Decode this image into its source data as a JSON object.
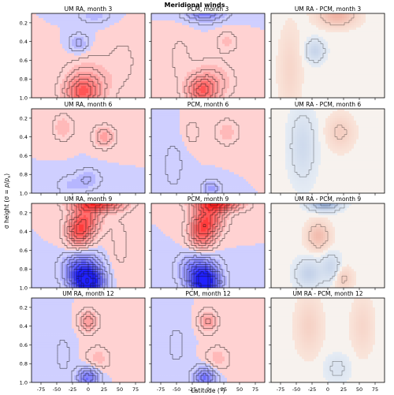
{
  "figure": {
    "title": "Meridional winds",
    "ylabel": "σ height (σ = p/p_s)",
    "xlabel": "Latitude (°)"
  },
  "chart_data": {
    "type": "heatmap",
    "title": "Meridional winds",
    "xlabel": "Latitude (°)",
    "ylabel": "σ height (σ = p/p_s)",
    "xlim": [
      -90,
      90
    ],
    "ylim": [
      1.0,
      0.1
    ],
    "x_ticks": [
      "-75",
      "-50",
      "-25",
      "0",
      "25",
      "50",
      "75"
    ],
    "y_ticks": [
      "0.2",
      "0.4",
      "0.6",
      "0.8",
      "1.0"
    ],
    "x_tick_values": [
      -75,
      -50,
      -25,
      0,
      25,
      50,
      75
    ],
    "y_tick_values": [
      0.2,
      0.4,
      0.6,
      0.8,
      1.0
    ],
    "colors": {
      "positive": "#e03030",
      "negative": "#3a3adf",
      "contour": "#111111"
    },
    "panels": [
      {
        "title": "UM RA, month 3",
        "row": 0,
        "col": 0,
        "style": "full",
        "blobs": [
          {
            "lat": -10,
            "sigma": 0.95,
            "value": 2.2,
            "wlat": 18,
            "wsig": 0.12
          },
          {
            "lat": 0,
            "sigma": 0.85,
            "value": 1.2,
            "wlat": 26,
            "wsig": 0.18
          },
          {
            "lat": -15,
            "sigma": 0.42,
            "value": -1.1,
            "wlat": 10,
            "wsig": 0.07
          },
          {
            "lat": 10,
            "sigma": 0.12,
            "value": -0.8,
            "wlat": 18,
            "wsig": 0.06
          },
          {
            "lat": 55,
            "sigma": 0.6,
            "value": 0.4,
            "wlat": 18,
            "wsig": 0.2
          }
        ]
      },
      {
        "title": "PCM, month 3",
        "row": 0,
        "col": 1,
        "style": "full",
        "blobs": [
          {
            "lat": -5,
            "sigma": 0.1,
            "value": -2.0,
            "wlat": 22,
            "wsig": 0.06
          },
          {
            "lat": -10,
            "sigma": 0.93,
            "value": 2.4,
            "wlat": 16,
            "wsig": 0.1
          },
          {
            "lat": 5,
            "sigma": 0.82,
            "value": 1.1,
            "wlat": 24,
            "wsig": 0.15
          },
          {
            "lat": 30,
            "sigma": 0.4,
            "value": 0.7,
            "wlat": 12,
            "wsig": 0.08
          },
          {
            "lat": -45,
            "sigma": 0.55,
            "value": 0.4,
            "wlat": 14,
            "wsig": 0.2
          }
        ]
      },
      {
        "title": "UM RA - PCM, month 3",
        "row": 0,
        "col": 2,
        "style": "diff",
        "blobs": [
          {
            "lat": 15,
            "sigma": 0.12,
            "value": 1.2,
            "wlat": 20,
            "wsig": 0.08
          },
          {
            "lat": -20,
            "sigma": 0.5,
            "value": -0.9,
            "wlat": 10,
            "wsig": 0.08
          },
          {
            "lat": -60,
            "sigma": 0.7,
            "value": 0.4,
            "wlat": 12,
            "wsig": 0.3
          }
        ]
      },
      {
        "title": "UM RA, month 6",
        "row": 1,
        "col": 0,
        "style": "full",
        "blobs": [
          {
            "lat": -40,
            "sigma": 0.3,
            "value": 0.9,
            "wlat": 12,
            "wsig": 0.1
          },
          {
            "lat": 25,
            "sigma": 0.4,
            "value": 1.4,
            "wlat": 12,
            "wsig": 0.08
          },
          {
            "lat": 0,
            "sigma": 0.85,
            "value": -0.9,
            "wlat": 14,
            "wsig": 0.08
          },
          {
            "lat": -30,
            "sigma": 0.92,
            "value": -0.6,
            "wlat": 16,
            "wsig": 0.08
          }
        ]
      },
      {
        "title": "PCM, month 6",
        "row": 1,
        "col": 1,
        "style": "full",
        "blobs": [
          {
            "lat": 30,
            "sigma": 0.35,
            "value": 0.8,
            "wlat": 14,
            "wsig": 0.1
          },
          {
            "lat": -25,
            "sigma": 0.35,
            "value": 0.5,
            "wlat": 10,
            "wsig": 0.1
          },
          {
            "lat": 5,
            "sigma": 0.95,
            "value": -1.4,
            "wlat": 10,
            "wsig": 0.06
          },
          {
            "lat": -55,
            "sigma": 0.7,
            "value": -0.5,
            "wlat": 12,
            "wsig": 0.2
          }
        ]
      },
      {
        "title": "UM RA - PCM, month 6",
        "row": 1,
        "col": 2,
        "style": "diff",
        "blobs": [
          {
            "lat": -40,
            "sigma": 0.5,
            "value": -0.7,
            "wlat": 14,
            "wsig": 0.25
          },
          {
            "lat": 20,
            "sigma": 0.35,
            "value": 0.6,
            "wlat": 14,
            "wsig": 0.12
          }
        ]
      },
      {
        "title": "UM RA, month 9",
        "row": 2,
        "col": 0,
        "style": "full",
        "blobs": [
          {
            "lat": -15,
            "sigma": 0.4,
            "value": 3.0,
            "wlat": 14,
            "wsig": 0.12
          },
          {
            "lat": 15,
            "sigma": 0.1,
            "value": 3.5,
            "wlat": 28,
            "wsig": 0.06
          },
          {
            "lat": 0,
            "sigma": 0.25,
            "value": 2.0,
            "wlat": 16,
            "wsig": 0.12
          },
          {
            "lat": 0,
            "sigma": 0.95,
            "value": -5.0,
            "wlat": 16,
            "wsig": 0.1
          },
          {
            "lat": -10,
            "sigma": 0.8,
            "value": -3.0,
            "wlat": 20,
            "wsig": 0.12
          },
          {
            "lat": 50,
            "sigma": 0.55,
            "value": 0.4,
            "wlat": 14,
            "wsig": 0.3
          }
        ]
      },
      {
        "title": "PCM, month 9",
        "row": 2,
        "col": 1,
        "style": "full",
        "blobs": [
          {
            "lat": -10,
            "sigma": 0.4,
            "value": 3.0,
            "wlat": 14,
            "wsig": 0.14
          },
          {
            "lat": 15,
            "sigma": 0.1,
            "value": 3.5,
            "wlat": 26,
            "wsig": 0.06
          },
          {
            "lat": 5,
            "sigma": 0.25,
            "value": 2.2,
            "wlat": 16,
            "wsig": 0.12
          },
          {
            "lat": -5,
            "sigma": 0.95,
            "value": -4.5,
            "wlat": 16,
            "wsig": 0.1
          },
          {
            "lat": -15,
            "sigma": 0.8,
            "value": -2.5,
            "wlat": 20,
            "wsig": 0.12
          }
        ]
      },
      {
        "title": "UM RA - PCM, month 9",
        "row": 2,
        "col": 2,
        "style": "diff",
        "blobs": [
          {
            "lat": -5,
            "sigma": 0.1,
            "value": -2.2,
            "wlat": 16,
            "wsig": 0.05
          },
          {
            "lat": -15,
            "sigma": 0.45,
            "value": 1.0,
            "wlat": 12,
            "wsig": 0.1
          },
          {
            "lat": -30,
            "sigma": 0.85,
            "value": -1.0,
            "wlat": 14,
            "wsig": 0.1
          },
          {
            "lat": 5,
            "sigma": 0.78,
            "value": -0.8,
            "wlat": 10,
            "wsig": 0.1
          },
          {
            "lat": 25,
            "sigma": 0.9,
            "value": 0.6,
            "wlat": 10,
            "wsig": 0.08
          }
        ]
      },
      {
        "title": "UM RA, month 12",
        "row": 3,
        "col": 0,
        "style": "full",
        "blobs": [
          {
            "lat": 0,
            "sigma": 0.35,
            "value": 1.8,
            "wlat": 10,
            "wsig": 0.08
          },
          {
            "lat": 0,
            "sigma": 0.95,
            "value": -2.5,
            "wlat": 12,
            "wsig": 0.08
          },
          {
            "lat": 15,
            "sigma": 0.75,
            "value": 0.8,
            "wlat": 14,
            "wsig": 0.1
          },
          {
            "lat": -40,
            "sigma": 0.7,
            "value": -0.4,
            "wlat": 12,
            "wsig": 0.2
          }
        ]
      },
      {
        "title": "PCM, month 12",
        "row": 3,
        "col": 1,
        "style": "full",
        "blobs": [
          {
            "lat": 0,
            "sigma": 0.35,
            "value": 1.6,
            "wlat": 10,
            "wsig": 0.08
          },
          {
            "lat": -5,
            "sigma": 0.95,
            "value": -2.5,
            "wlat": 12,
            "wsig": 0.08
          },
          {
            "lat": 15,
            "sigma": 0.75,
            "value": 0.8,
            "wlat": 14,
            "wsig": 0.1
          },
          {
            "lat": -50,
            "sigma": 0.6,
            "value": -0.4,
            "wlat": 14,
            "wsig": 0.2
          }
        ]
      },
      {
        "title": "UM RA - PCM, month 12",
        "row": 3,
        "col": 2,
        "style": "diff",
        "blobs": [
          {
            "lat": -30,
            "sigma": 0.4,
            "value": 0.5,
            "wlat": 14,
            "wsig": 0.2
          },
          {
            "lat": 15,
            "sigma": 0.85,
            "value": -0.4,
            "wlat": 14,
            "wsig": 0.1
          },
          {
            "lat": 55,
            "sigma": 0.4,
            "value": 0.4,
            "wlat": 12,
            "wsig": 0.2
          }
        ]
      }
    ]
  }
}
